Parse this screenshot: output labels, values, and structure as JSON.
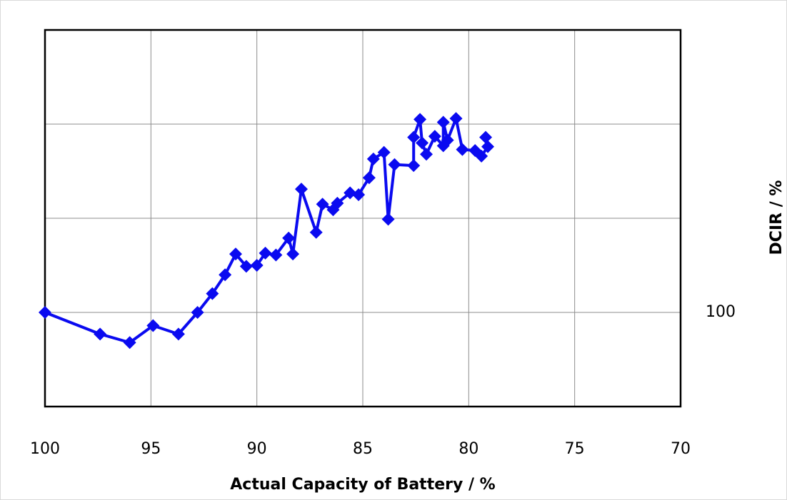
{
  "chart_data": {
    "type": "line",
    "x_label": "Actual Capacity of Battery / %",
    "y_label": "DCIR / %",
    "xlim": [
      100,
      70
    ],
    "xticks": [
      100,
      95,
      90,
      85,
      80,
      75,
      70
    ],
    "ylim": [
      90,
      130
    ],
    "yticks": [
      100
    ],
    "ygrid": [
      90,
      100,
      110,
      120,
      130
    ],
    "grid": true,
    "marker": "diamond",
    "series": [
      {
        "color": "#0a0af0",
        "x": [
          100,
          97.4,
          96.0,
          94.9,
          93.7,
          92.8,
          92.1,
          91.5,
          91.0,
          90.5,
          90.0,
          89.6,
          89.1,
          88.5,
          88.3,
          87.9,
          87.2,
          86.9,
          86.4,
          86.2,
          85.6,
          85.2,
          84.7,
          84.5,
          84.0,
          83.8,
          83.5,
          82.6,
          82.6,
          82.3,
          82.2,
          82.0,
          81.6,
          81.2,
          81.2,
          81.0,
          80.6,
          80.3,
          79.7,
          79.4,
          79.1,
          79.2
        ],
        "values": [
          100,
          97.7,
          96.8,
          98.6,
          97.7,
          100,
          102.0,
          104.0,
          106.2,
          104.9,
          105.0,
          106.3,
          106.1,
          107.9,
          106.2,
          113.1,
          108.5,
          111.5,
          110.9,
          111.6,
          112.7,
          112.5,
          114.3,
          116.3,
          117.0,
          109.9,
          115.7,
          115.6,
          118.6,
          120.5,
          118.0,
          116.8,
          118.7,
          117.7,
          120.2,
          118.3,
          120.6,
          117.3,
          117.2,
          116.6,
          117.6,
          118.6
        ]
      }
    ]
  }
}
